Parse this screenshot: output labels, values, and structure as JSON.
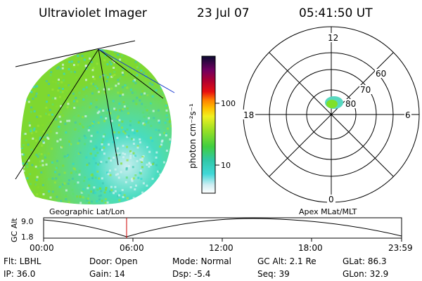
{
  "header": {
    "instrument": "Ultraviolet Imager",
    "date": "23 Jul 07",
    "time": "05:41:50 UT"
  },
  "colorbar": {
    "unit_label": "photon cm⁻²s⁻¹",
    "ticks": [
      "100",
      "10"
    ]
  },
  "polar": {
    "mlt_labels": {
      "top": "12",
      "right": "6",
      "bottom": "0",
      "left": "18"
    },
    "lat_labels": [
      "60",
      "70",
      "80"
    ]
  },
  "timeline": {
    "left_label": "Geographic Lat/Lon",
    "right_label": "Apex MLat/MLT",
    "axis_title": "GC Alt",
    "y_top": "9.0",
    "y_bottom": "1.8",
    "x_ticks": [
      "00:00",
      "06:00",
      "12:00",
      "18:00",
      "23:59"
    ]
  },
  "status": {
    "row1": {
      "flt": "Flt: LBHL",
      "door": "Door: Open",
      "mode": "Mode: Normal",
      "gcalt": "GC Alt: 2.1 Re",
      "glat": "GLat:  86.3"
    },
    "row2": {
      "ip": "IP: 36.0",
      "gain": "Gain: 14",
      "dsp": "Dsp:    -5.4",
      "seq": "Seq: 39",
      "glon": "GLon:  32.9"
    }
  },
  "colors": {
    "disk_green": "#7fe02a",
    "disk_cyan": "#3fe0c8",
    "timeline_marker": "#cc0000"
  }
}
